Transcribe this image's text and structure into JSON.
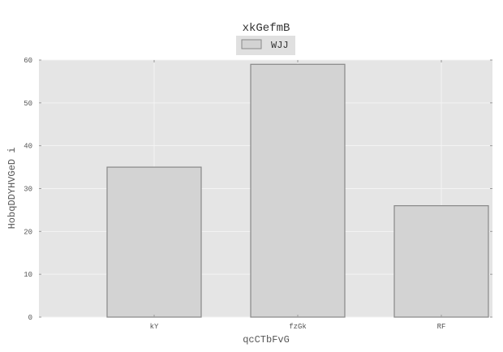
{
  "chart_data": {
    "type": "bar",
    "title": "xkGefmB",
    "xlabel": "qcCTbFvG",
    "ylabel": "HobqDDYHVGeD i",
    "categories": [
      "kY",
      "fzGk",
      "RF"
    ],
    "series": [
      {
        "name": "WJJ",
        "values": [
          35,
          59,
          26
        ]
      }
    ],
    "ylim": [
      0,
      60
    ],
    "yticks": [
      0,
      10,
      20,
      30,
      40,
      50,
      60
    ],
    "grid": true,
    "legend": "top-center",
    "colors": {
      "plot_background": "#e5e5e5",
      "bar_fill": "#d3d3d3",
      "bar_edge": "#888888",
      "grid": "#f4f4f4"
    }
  }
}
